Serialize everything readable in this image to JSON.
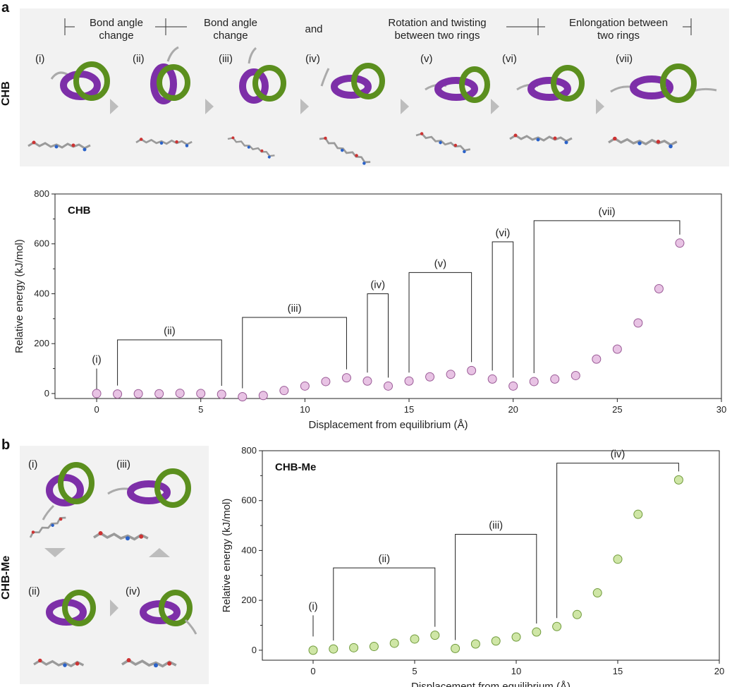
{
  "panel_a": {
    "letter": "a",
    "side_label": "CHB",
    "stages": [
      {
        "l1": "Bond angle",
        "l2": "change"
      },
      {
        "l1": "Bond angle",
        "l2": "change"
      },
      {
        "l1": "and",
        "l2": ""
      },
      {
        "l1": "Rotation and twisting",
        "l2": "between two rings"
      },
      {
        "l1": "Enlongation between",
        "l2": "two rings"
      }
    ],
    "steps": [
      "(i)",
      "(ii)",
      "(iii)",
      "(iv)",
      "(v)",
      "(vi)",
      "(vii)"
    ]
  },
  "panel_b": {
    "letter": "b",
    "side_label": "CHB-Me",
    "steps": [
      "(i)",
      "(iii)",
      "(ii)",
      "(iv)"
    ]
  },
  "colors": {
    "purple_ring": "#7d2fa8",
    "green_ring": "#5b8f1e",
    "chb_marker": "#e8c3e4",
    "chb_marker_edge": "#9a5a96",
    "chbme_marker": "#cfe6a6",
    "chbme_marker_edge": "#6f9a3a"
  },
  "chart_data": [
    {
      "type": "scatter",
      "title": "CHB",
      "xlabel": "Displacement from equilibrium (Å)",
      "ylabel": "Relative energy (kJ/mol)",
      "xlim": [
        -2,
        30
      ],
      "ylim": [
        -20,
        800
      ],
      "xticks": [
        0,
        5,
        10,
        15,
        20,
        25,
        30
      ],
      "yticks": [
        0,
        200,
        400,
        600,
        800
      ],
      "x": [
        0,
        1,
        2,
        3,
        4,
        5,
        6,
        7,
        8,
        9,
        10,
        11,
        12,
        13,
        14,
        15,
        16,
        17,
        18,
        19,
        20,
        21,
        22,
        23,
        24,
        25,
        26,
        27,
        28
      ],
      "y": [
        0,
        -2,
        -1,
        -1,
        1,
        0,
        -3,
        -13,
        -8,
        12,
        30,
        48,
        63,
        50,
        30,
        50,
        67,
        77,
        92,
        58,
        30,
        48,
        58,
        72,
        138,
        178,
        283,
        420,
        603
      ],
      "annotations": [
        {
          "label": "(i)",
          "x0": 0,
          "x1": 0,
          "y": 100,
          "kind": "line"
        },
        {
          "label": "(ii)",
          "x0": 1,
          "x1": 6,
          "y": 215,
          "kind": "bracket"
        },
        {
          "label": "(iii)",
          "x0": 7,
          "x1": 12,
          "y": 305,
          "kind": "bracket"
        },
        {
          "label": "(iv)",
          "x0": 13,
          "x1": 14,
          "y": 400,
          "kind": "bracket"
        },
        {
          "label": "(v)",
          "x0": 15,
          "x1": 18,
          "y": 485,
          "kind": "bracket"
        },
        {
          "label": "(vi)",
          "x0": 19,
          "x1": 20,
          "y": 608,
          "kind": "bracket"
        },
        {
          "label": "(vii)",
          "x0": 21,
          "x1": 28,
          "y": 693,
          "kind": "bracket"
        }
      ]
    },
    {
      "type": "scatter",
      "title": "CHB-Me",
      "xlabel": "Displacement from equilibrium (Å)",
      "ylabel": "Relative energy (kJ/mol)",
      "xlim": [
        -2.5,
        20
      ],
      "ylim": [
        -40,
        800
      ],
      "xticks": [
        0,
        5,
        10,
        15,
        20
      ],
      "yticks": [
        0,
        200,
        400,
        600,
        800
      ],
      "x": [
        0,
        1,
        2,
        3,
        4,
        5,
        6,
        7,
        8,
        9,
        10,
        11,
        12,
        13,
        14,
        15,
        16,
        17,
        18
      ],
      "y": [
        0,
        5,
        10,
        15,
        28,
        45,
        60,
        7,
        25,
        37,
        53,
        73,
        95,
        143,
        230,
        365,
        545,
        null,
        683
      ],
      "annotations": [
        {
          "label": "(i)",
          "x0": 0,
          "x1": 0,
          "y": 140,
          "kind": "line"
        },
        {
          "label": "(ii)",
          "x0": 1,
          "x1": 6,
          "y": 330,
          "kind": "bracket"
        },
        {
          "label": "(iii)",
          "x0": 7,
          "x1": 11,
          "y": 465,
          "kind": "bracket"
        },
        {
          "label": "(iv)",
          "x0": 12,
          "x1": 18,
          "y": 750,
          "kind": "bracket"
        }
      ]
    }
  ]
}
